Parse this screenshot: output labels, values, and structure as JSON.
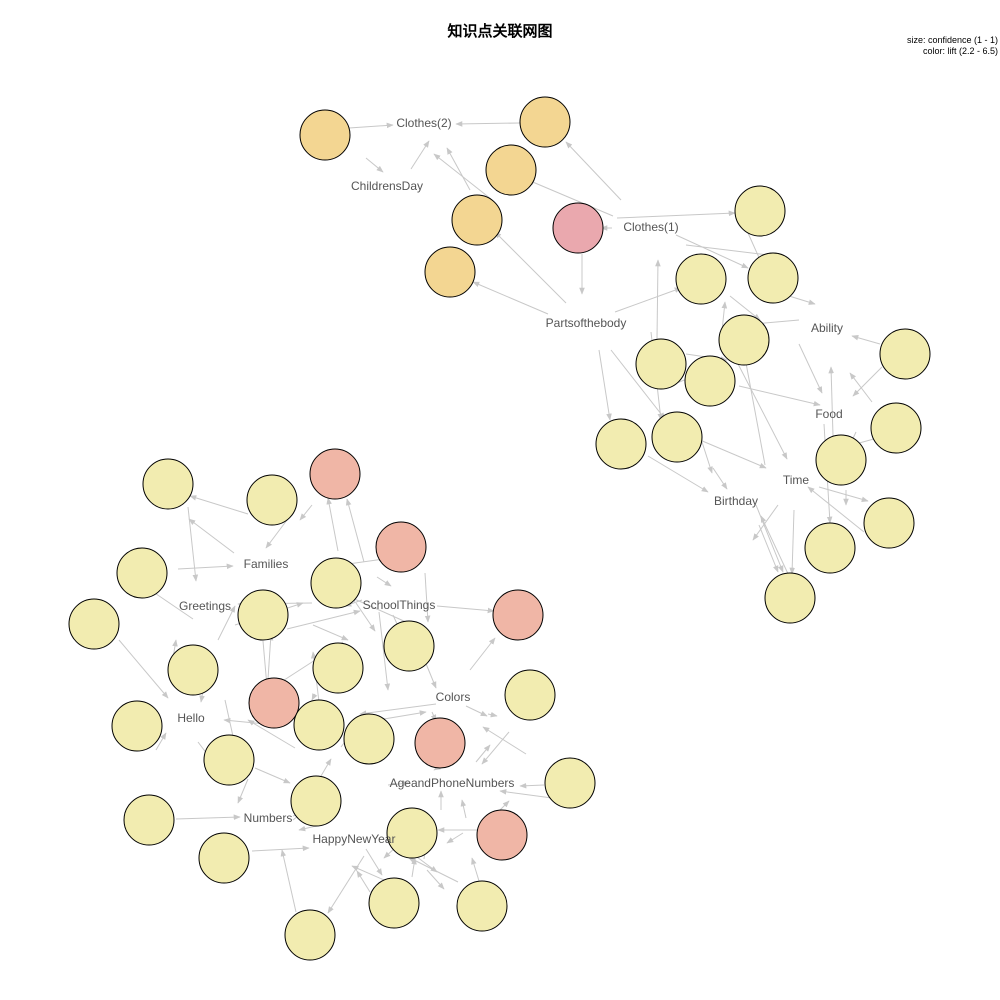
{
  "title": "知识点关联网图",
  "legend": {
    "size": "size: confidence (1 - 1)",
    "color": "color: lift (2.2 - 6.5)"
  },
  "colors": {
    "low_lift": "#f2ecb0",
    "mid_lift": "#f3d692",
    "high_lift": "#f0b6a6",
    "top_lift": "#eaa8ae",
    "edge": "#c8c8c8"
  },
  "items": [
    "Clothes(2)",
    "ChildrensDay",
    "Clothes(1)",
    "Partsofthebody",
    "Ability",
    "Food",
    "Time",
    "Birthday",
    "Families",
    "Greetings",
    "SchoolThings",
    "Colors",
    "Hello",
    "AgeandPhoneNumbers",
    "Numbers",
    "HappyNewYear"
  ]
}
